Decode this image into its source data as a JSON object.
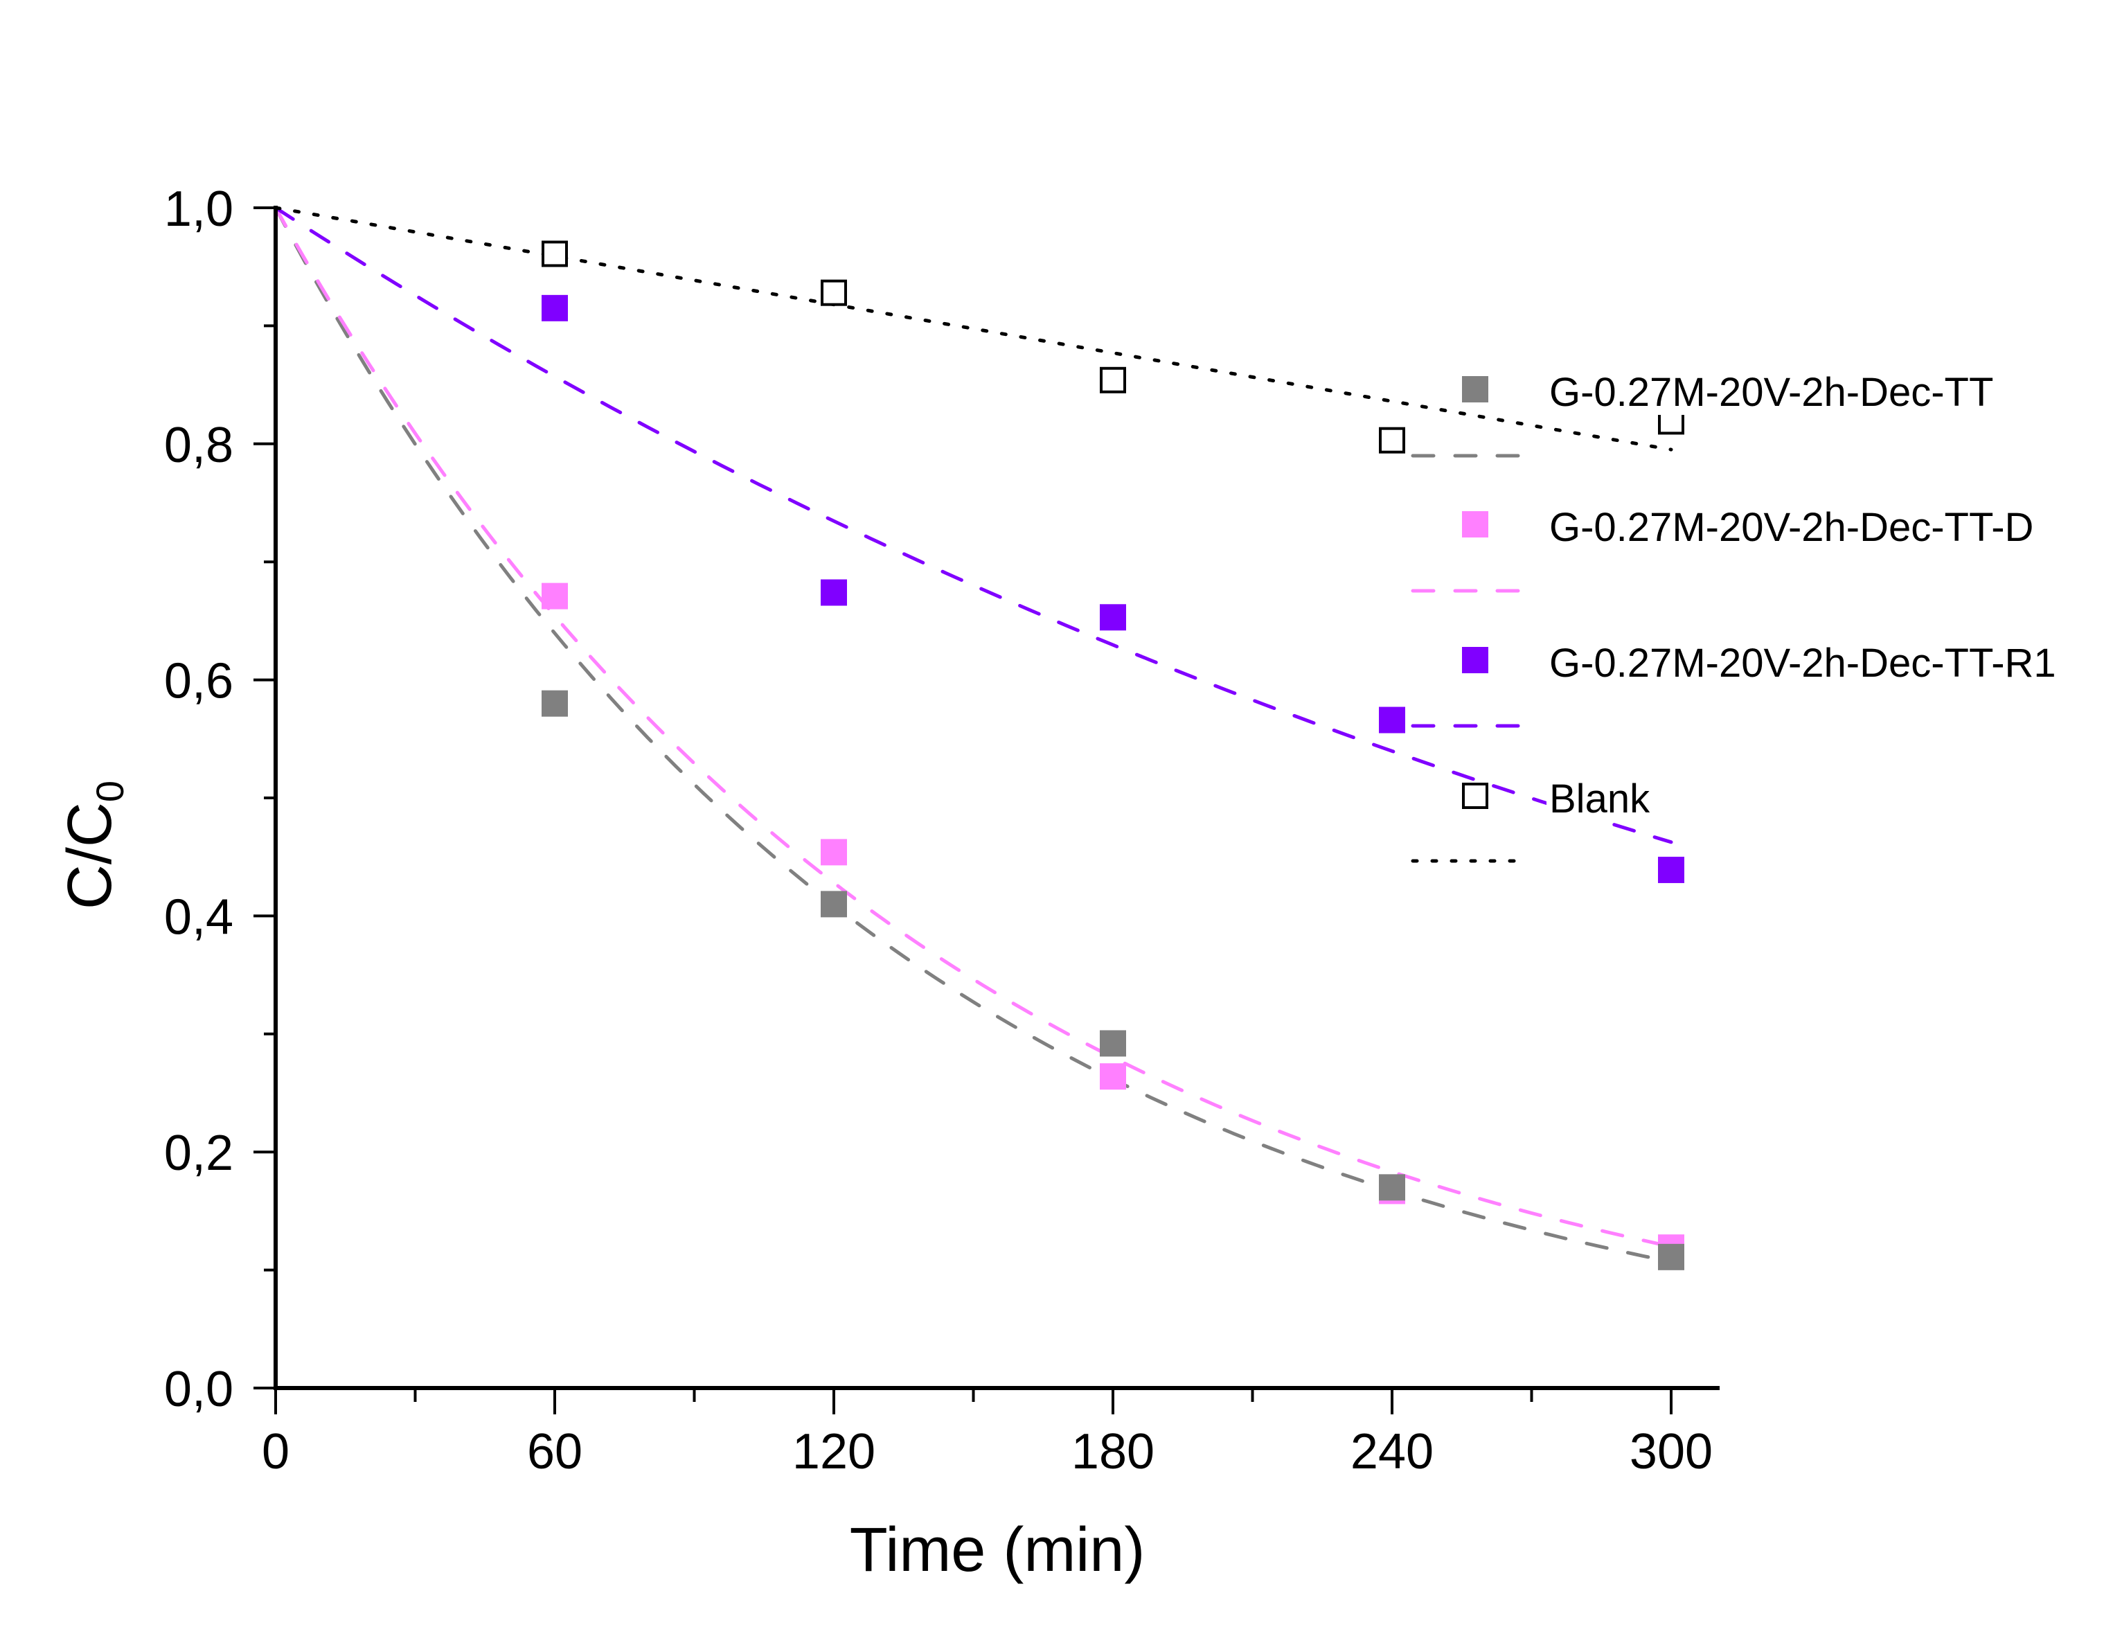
{
  "chart_data": {
    "type": "scatter",
    "title": "",
    "xlabel": "Time (min)",
    "ylabel_main": "C/C",
    "ylabel_sub": "0",
    "xlim": [
      0,
      310
    ],
    "ylim": [
      0,
      1.0
    ],
    "x_ticks": [
      0,
      60,
      120,
      180,
      240,
      300
    ],
    "x_tick_labels": [
      "0",
      "60",
      "120",
      "180",
      "240",
      "300"
    ],
    "x_minor_step": 30,
    "y_ticks": [
      0,
      0.2,
      0.4,
      0.6,
      0.8,
      1.0
    ],
    "y_tick_labels": [
      "0,0",
      "0,2",
      "0,4",
      "0,6",
      "0,8",
      "1,0"
    ],
    "y_minor_step": 0.1,
    "grid": false,
    "legend_position": "right",
    "x": [
      0,
      60,
      120,
      180,
      240,
      300
    ],
    "series": [
      {
        "name": "G-0.27M-20V-2h-Dec-TT",
        "color": "#808080",
        "marker": "filled-square",
        "values": [
          1.0,
          0.58,
          0.41,
          0.292,
          0.17,
          0.111
        ],
        "fit": {
          "model": "exponential",
          "k": 0.00745,
          "line": "dashed"
        }
      },
      {
        "name": "G-0.27M-20V-2h-Dec-TT-D",
        "color": "#FF80FF",
        "marker": "filled-square",
        "values": [
          1.0,
          0.671,
          0.454,
          0.264,
          0.167,
          0.119
        ],
        "fit": {
          "model": "exponential",
          "k": 0.00707,
          "line": "dashed"
        }
      },
      {
        "name": "G-0.27M-20V-2h-Dec-TT-R1",
        "color": "#8000FF",
        "marker": "filled-square",
        "values": [
          1.0,
          0.915,
          0.674,
          0.653,
          0.566,
          0.439
        ],
        "fit": {
          "model": "exponential",
          "k": 0.00257,
          "line": "dashed"
        }
      },
      {
        "name": "Blank",
        "color": "#000000",
        "marker": "open-square",
        "values": [
          1.0,
          0.961,
          0.928,
          0.854,
          0.803,
          0.819
        ],
        "fit": {
          "model": "linear",
          "slope": -0.000683,
          "line": "dotted"
        }
      }
    ]
  }
}
